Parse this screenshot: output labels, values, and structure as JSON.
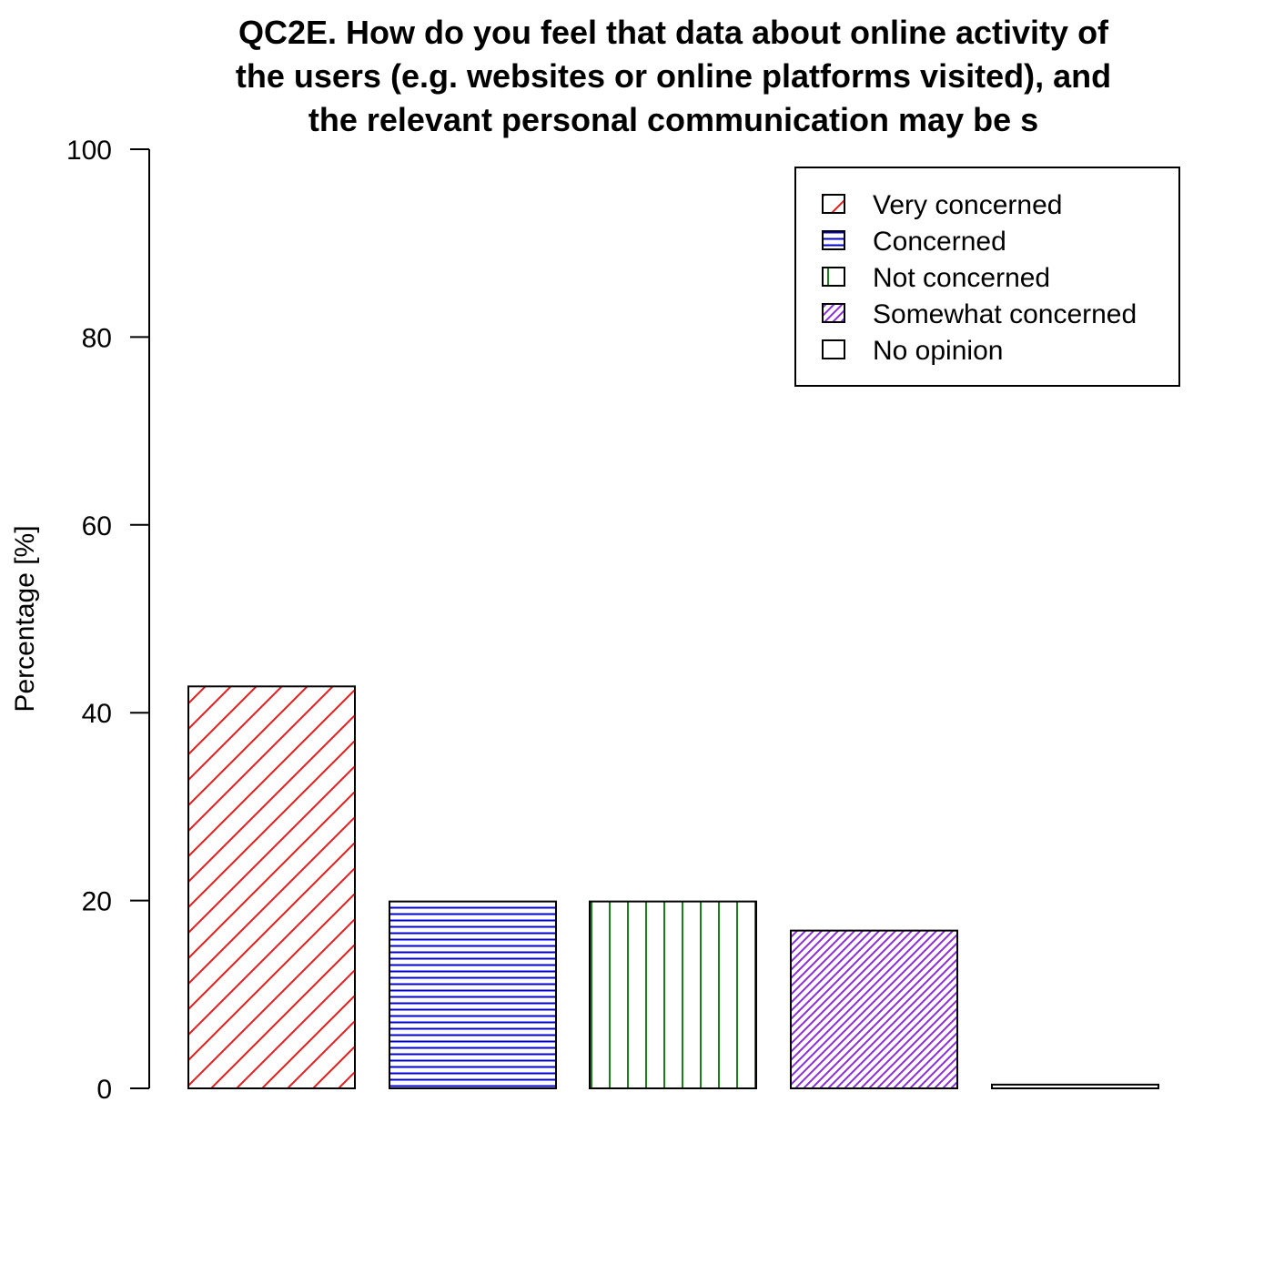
{
  "chart_data": {
    "type": "bar",
    "title_lines": [
      "QC2E. How do you feel that data about online activity of",
      "the users (e.g. websites or online platforms visited), and",
      "the relevant personal communication may be s"
    ],
    "xlabel": "",
    "ylabel": "Percentage [%]",
    "ylim": [
      0,
      100
    ],
    "yticks": [
      "0",
      "20",
      "40",
      "60",
      "80",
      "100"
    ],
    "grid": false,
    "legend_position": "top-right",
    "categories": [
      "Very concerned",
      "Concerned",
      "Not concerned",
      "Somewhat concerned",
      "No opinion"
    ],
    "values": [
      42.8,
      19.9,
      19.9,
      16.8,
      0.4
    ],
    "colors": [
      "#e41a1c",
      "#0000cc",
      "#1b7f1b",
      "#8a2be2",
      "#ff8c00"
    ],
    "patterns": [
      "diagonal",
      "horizontal",
      "vertical",
      "dense-diagonal",
      "none"
    ]
  }
}
